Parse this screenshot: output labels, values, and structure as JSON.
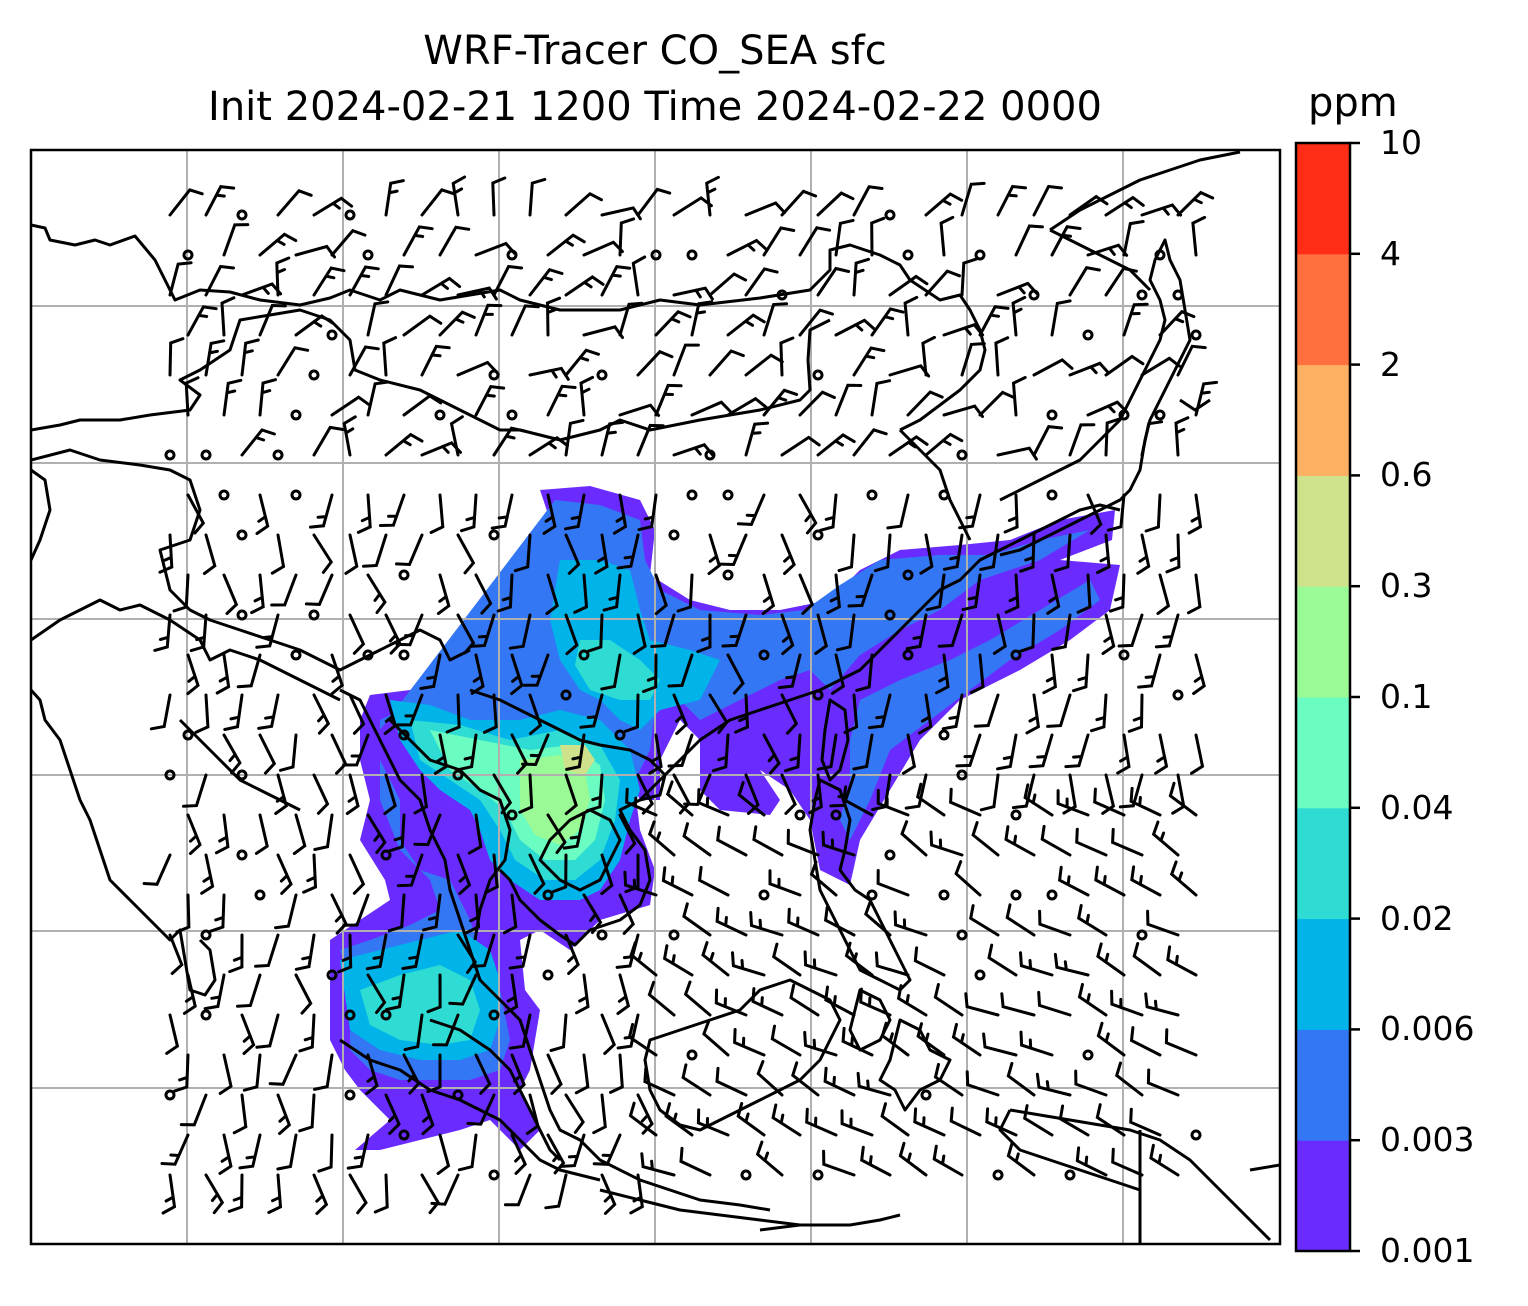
{
  "map": {
    "title_line1": "WRF-Tracer CO_SEA sfc",
    "title_line2": "Init 2024-02-21 1200 Time 2024-02-22 0000",
    "layer": "CO_SEA surface tracer concentration with wind barbs",
    "coastline_color": "#000000",
    "gridline_color": "#b0b0b0"
  },
  "colorbar": {
    "unit": "ppm",
    "levels": [
      "0.001",
      "0.003",
      "0.006",
      "0.02",
      "0.04",
      "0.1",
      "0.3",
      "0.6",
      "2",
      "4",
      "10"
    ],
    "colors": [
      "#6a2bff",
      "#3477f4",
      "#00b4ea",
      "#2edcd4",
      "#6afcc0",
      "#9afa96",
      "#cde28a",
      "#fdb062",
      "#ff703e",
      "#ff2c16"
    ]
  }
}
